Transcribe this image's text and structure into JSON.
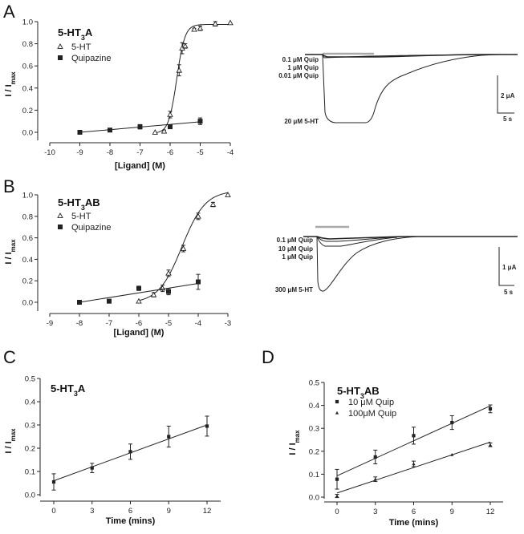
{
  "figure": {
    "panel_letters": [
      "A",
      "B",
      "C",
      "D"
    ]
  },
  "chart_data": [
    {
      "id": "A",
      "type": "scatter",
      "title": "5-HT",
      "title_sub": "3",
      "title_suffix": "A",
      "xlabel": "[Ligand] (M)",
      "ylabel": "I / I",
      "ylabel_sub": "max",
      "xlim": [
        -10,
        -4
      ],
      "ylim": [
        -0.05,
        1.0
      ],
      "xticks": [
        -10,
        -9,
        -8,
        -7,
        -6,
        -5,
        -4
      ],
      "xtick_labels": [
        "-10",
        "-9",
        "-8",
        "-7",
        "-6",
        "-5",
        "-4"
      ],
      "yticks": [
        0.0,
        0.2,
        0.4,
        0.6,
        0.8,
        1.0
      ],
      "ytick_labels": [
        "0.0",
        "0.2",
        "0.4",
        "0.6",
        "0.8",
        "1.0"
      ],
      "legend_position": "top-left",
      "series": [
        {
          "name": "5-HT",
          "marker": "open-triangle",
          "x": [
            -6.5,
            -6.2,
            -6.0,
            -5.7,
            -5.6,
            -5.5,
            -5.2,
            -5.0,
            -4.5,
            -4.0
          ],
          "y": [
            0.0,
            0.01,
            0.16,
            0.56,
            0.76,
            0.78,
            0.93,
            0.94,
            0.98,
            0.99
          ],
          "err": [
            0.0,
            0.01,
            0.03,
            0.05,
            0.05,
            0.02,
            0.01,
            0.02,
            0.02,
            0.0
          ],
          "fit": {
            "type": "sigmoid",
            "bottom": -0.01,
            "top": 0.975,
            "logEC50": -5.78,
            "hill": 3.2
          }
        },
        {
          "name": "Quipazine",
          "marker": "filled-square",
          "x": [
            -9,
            -8,
            -7,
            -6,
            -5
          ],
          "y": [
            0.0,
            0.02,
            0.05,
            0.05,
            0.1
          ],
          "err": [
            0.0,
            0.0,
            0.02,
            0.0,
            0.03
          ],
          "fit": {
            "type": "linear",
            "x0": -9,
            "y0": 0.0,
            "x1": -5,
            "y1": 0.095
          }
        }
      ]
    },
    {
      "id": "A-traces",
      "type": "line",
      "bar_label": "",
      "trace_labels": [
        "0.1 μM Quip",
        "1 μM Quip",
        "0.01 μM Quip",
        "20 μM 5-HT"
      ],
      "scale_current": "2 μA",
      "scale_time": "5 s"
    },
    {
      "id": "B",
      "type": "scatter",
      "title": "5-HT",
      "title_sub": "3",
      "title_suffix": "AB",
      "xlabel": "[Ligand] (M)",
      "ylabel": "I / I",
      "ylabel_sub": "max",
      "xlim": [
        -9,
        -3
      ],
      "ylim": [
        -0.1,
        1.0
      ],
      "xticks": [
        -9,
        -8,
        -7,
        -6,
        -5,
        -4,
        -3
      ],
      "xtick_labels": [
        "-9",
        "-8",
        "-7",
        "-6",
        "-5",
        "-4",
        "-3"
      ],
      "yticks": [
        0.0,
        0.2,
        0.4,
        0.6,
        0.8,
        1.0
      ],
      "ytick_labels": [
        "0.0",
        "0.2",
        "0.4",
        "0.6",
        "0.8",
        "1.0"
      ],
      "legend_position": "top-left",
      "series": [
        {
          "name": "5-HT",
          "marker": "open-triangle",
          "x": [
            -6.0,
            -5.5,
            -5.2,
            -5.0,
            -4.5,
            -4.0,
            -3.5,
            -3.0
          ],
          "y": [
            0.01,
            0.07,
            0.13,
            0.27,
            0.5,
            0.8,
            0.91,
            1.0
          ],
          "err": [
            0.0,
            0.02,
            0.03,
            0.03,
            0.03,
            0.03,
            0.02,
            0.0
          ],
          "fit": {
            "type": "sigmoid",
            "bottom": -0.01,
            "top": 1.04,
            "logEC50": -4.55,
            "hill": 1.1
          }
        },
        {
          "name": "Quipazine",
          "marker": "filled-square",
          "x": [
            -8,
            -7,
            -6,
            -5,
            -4
          ],
          "y": [
            0.0,
            0.01,
            0.13,
            0.1,
            0.19
          ],
          "err": [
            0.0,
            0.0,
            0.02,
            0.03,
            0.07
          ],
          "fit": {
            "type": "linear",
            "x0": -8,
            "y0": 0.0,
            "x1": -4,
            "y1": 0.175
          }
        }
      ]
    },
    {
      "id": "B-traces",
      "type": "line",
      "trace_labels": [
        "0.1 μM Quip",
        "10 μM Quip",
        "1 μM Quip",
        "300 μM 5-HT"
      ],
      "scale_current": "1 μA",
      "scale_time": "5 s"
    },
    {
      "id": "C",
      "type": "scatter",
      "title": "5-HT",
      "title_sub": "3",
      "title_suffix": "A",
      "xlabel": "Time (mins)",
      "ylabel": "I / I",
      "ylabel_sub": "max",
      "xlim": [
        -2,
        14
      ],
      "ylim": [
        0.0,
        0.5
      ],
      "xticks": [
        0,
        3,
        6,
        9,
        12
      ],
      "xtick_labels": [
        "0",
        "3",
        "6",
        "9",
        "12"
      ],
      "yticks": [
        0.0,
        0.1,
        0.2,
        0.3,
        0.4,
        0.5
      ],
      "ytick_labels": [
        "0.0",
        "0.1",
        "0.2",
        "0.3",
        "0.4",
        "0.5"
      ],
      "series": [
        {
          "name": "5-HT3A",
          "marker": "filled-square",
          "x": [
            0,
            3,
            6,
            9,
            12
          ],
          "y": [
            0.055,
            0.115,
            0.185,
            0.25,
            0.295
          ],
          "err": [
            0.035,
            0.02,
            0.033,
            0.045,
            0.043
          ],
          "fit": {
            "type": "linear",
            "x0": 0,
            "y0": 0.06,
            "x1": 12,
            "y1": 0.3
          }
        }
      ]
    },
    {
      "id": "D",
      "type": "scatter",
      "title": "5-HT",
      "title_sub": "3",
      "title_suffix": "AB",
      "xlabel": "Time (mins)",
      "ylabel": "I / I",
      "ylabel_sub": "max",
      "xlim": [
        -1,
        13
      ],
      "ylim": [
        0.0,
        0.5
      ],
      "xticks": [
        0,
        3,
        6,
        9,
        12
      ],
      "xtick_labels": [
        "0",
        "3",
        "6",
        "9",
        "12"
      ],
      "yticks": [
        0.0,
        0.1,
        0.2,
        0.3,
        0.4,
        0.5
      ],
      "ytick_labels": [
        "0.0",
        "0.1",
        "0.2",
        "0.3",
        "0.4",
        "0.5"
      ],
      "legend_position": "top-left",
      "series": [
        {
          "name": "10 μM Quip",
          "marker": "filled-square",
          "x": [
            0,
            3,
            6,
            9,
            12
          ],
          "y": [
            0.078,
            0.175,
            0.268,
            0.325,
            0.385
          ],
          "err": [
            0.043,
            0.03,
            0.037,
            0.03,
            0.017
          ],
          "fit": {
            "type": "linear",
            "x0": 0,
            "y0": 0.093,
            "x1": 12,
            "y1": 0.398
          }
        },
        {
          "name": "100μM Quip",
          "marker": "filled-triangle",
          "x": [
            0,
            3,
            6,
            9,
            12
          ],
          "y": [
            0.005,
            0.078,
            0.145,
            0.185,
            0.228
          ],
          "err": [
            0.007,
            0.01,
            0.012,
            0.0,
            0.008
          ],
          "fit": {
            "type": "linear",
            "x0": 0,
            "y0": 0.018,
            "x1": 12,
            "y1": 0.24
          }
        }
      ]
    }
  ]
}
